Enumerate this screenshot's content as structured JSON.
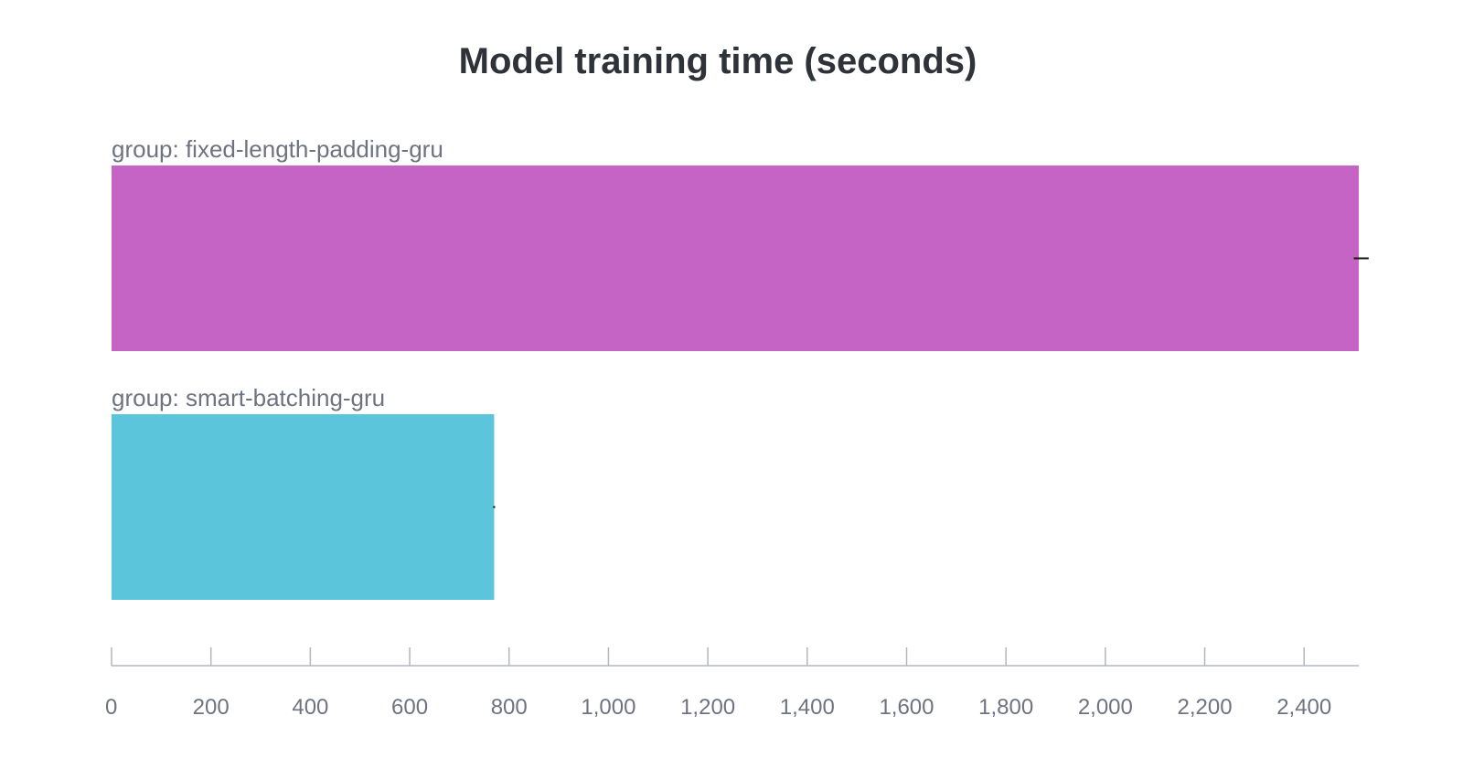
{
  "chart_data": {
    "type": "bar",
    "orientation": "horizontal",
    "title": "Model training time (seconds)",
    "categories": [
      "group: fixed-length-padding-gru",
      "group: smart-batching-gru"
    ],
    "values": [
      2510,
      770
    ],
    "colors": [
      "#c564c5",
      "#5bc5dc"
    ],
    "xlim": [
      0,
      2510
    ],
    "xticks": [
      0,
      200,
      400,
      600,
      800,
      1000,
      1200,
      1400,
      1600,
      1800,
      2000,
      2200,
      2400
    ],
    "xtick_labels": [
      "0",
      "200",
      "400",
      "600",
      "800",
      "1,000",
      "1,200",
      "1,400",
      "1,600",
      "1,800",
      "2,000",
      "2,200",
      "2,400"
    ],
    "error_bars": [
      {
        "low": 2500,
        "high": 2530
      },
      {
        "low": 768,
        "high": 772
      }
    ],
    "xlabel": "",
    "ylabel": "",
    "grid": false,
    "legend": "none"
  }
}
